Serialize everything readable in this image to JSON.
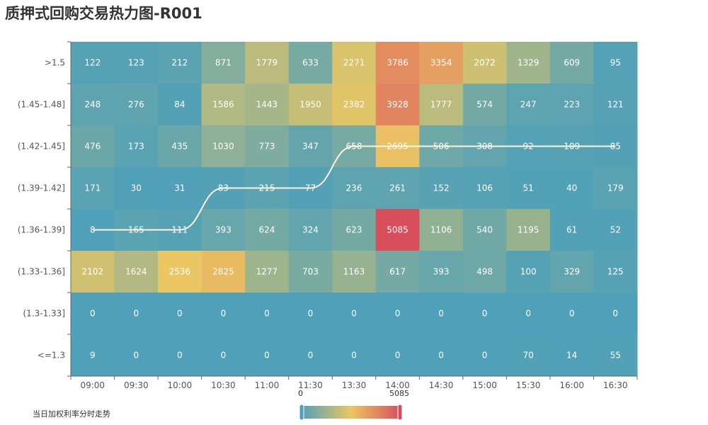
{
  "title": "质押式回购交易热力图-R001",
  "legend_label": "当日加权利率分时走势",
  "chart_data": {
    "type": "heatmap",
    "x": [
      "09:00",
      "09:30",
      "10:00",
      "10:30",
      "11:00",
      "11:30",
      "13:30",
      "14:00",
      "14:30",
      "15:00",
      "15:30",
      "16:00",
      "16:30"
    ],
    "y": [
      ">1.5",
      "(1.45-1.48]",
      "(1.42-1.45]",
      "(1.39-1.42]",
      "(1.36-1.39]",
      "(1.33-1.36]",
      "(1.3-1.33]",
      "<=1.3"
    ],
    "values": [
      [
        122,
        123,
        212,
        871,
        1779,
        633,
        2271,
        3786,
        3354,
        2072,
        1329,
        609,
        95
      ],
      [
        248,
        276,
        84,
        1586,
        1443,
        1950,
        2382,
        3928,
        1777,
        574,
        247,
        223,
        121
      ],
      [
        476,
        173,
        435,
        1030,
        773,
        347,
        658,
        2695,
        506,
        308,
        92,
        109,
        85
      ],
      [
        171,
        30,
        31,
        83,
        215,
        77,
        236,
        261,
        152,
        106,
        51,
        40,
        179
      ],
      [
        8,
        165,
        111,
        393,
        624,
        324,
        623,
        5085,
        1106,
        540,
        1195,
        61,
        52
      ],
      [
        2102,
        1624,
        2536,
        2825,
        1277,
        703,
        1163,
        617,
        393,
        498,
        100,
        329,
        125
      ],
      [
        0,
        0,
        0,
        0,
        0,
        0,
        0,
        0,
        0,
        0,
        0,
        0,
        0
      ],
      [
        9,
        0,
        0,
        0,
        0,
        0,
        0,
        0,
        0,
        0,
        70,
        14,
        55
      ]
    ],
    "line_series": {
      "y_category": [
        "(1.36-1.39]",
        "(1.36-1.39]",
        "(1.36-1.39]",
        "(1.39-1.42]",
        "(1.39-1.42]",
        "(1.39-1.42]",
        "(1.42-1.45]",
        "(1.42-1.45]",
        "(1.42-1.45]",
        "(1.42-1.45]",
        "(1.42-1.45]",
        "(1.42-1.45]",
        "(1.42-1.45]"
      ]
    },
    "visual_map": {
      "min": 0,
      "max": 5085,
      "min_label": "0",
      "max_label": "5085"
    },
    "colors": [
      "#4fa0b8",
      "#eac763",
      "#d94e5d"
    ],
    "line_color": "#fff4de",
    "text_color": "#ffffff",
    "axis_label_color": "#555555"
  }
}
